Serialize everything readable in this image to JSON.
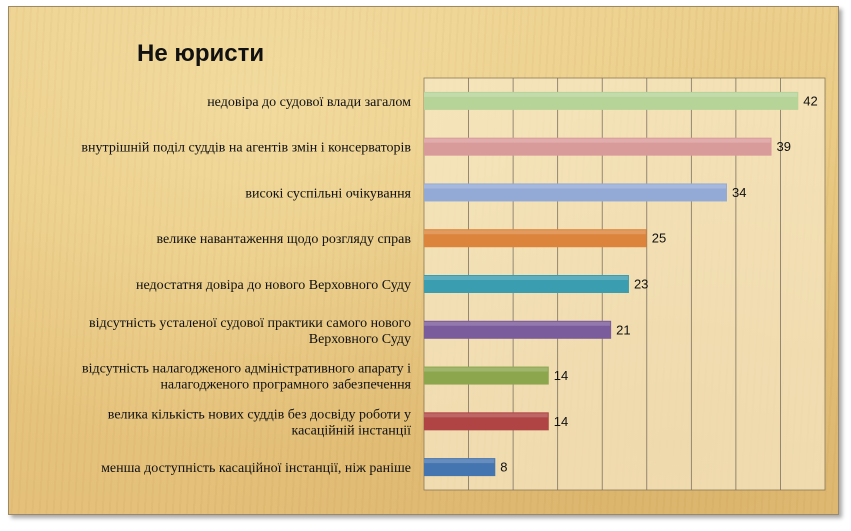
{
  "chart_data": {
    "type": "bar",
    "orientation": "horizontal",
    "title": "Не юристи",
    "categories": [
      [
        "недовіра до судової влади загалом"
      ],
      [
        "внутрішній поділ суддів на агентів змін і консерваторів"
      ],
      [
        "високі суспільні очікування"
      ],
      [
        "велике навантаження щодо розгляду справ"
      ],
      [
        "недостатня довіра до нового Верховного Суду"
      ],
      [
        "відсутність усталеної судової практики самого нового",
        "Верховного Суду"
      ],
      [
        "відсутність налагодженого адміністративного апарату і",
        "налагодженого програмного забезпечення"
      ],
      [
        "велика кількість нових суддів без досвіду роботи у",
        "касаційній інстанції"
      ],
      [
        "менша доступність касаційної інстанції, ніж раніше"
      ]
    ],
    "values": [
      42,
      39,
      34,
      25,
      23,
      21,
      14,
      14,
      8
    ],
    "colors": [
      "#b6d398",
      "#d99a9a",
      "#93aad6",
      "#dc843c",
      "#3a9db0",
      "#7a5b9c",
      "#8ca64e",
      "#b04444",
      "#4575b0"
    ],
    "xlim": [
      0,
      45
    ],
    "x_grid_step": 5,
    "grid": true,
    "legend": "none"
  }
}
